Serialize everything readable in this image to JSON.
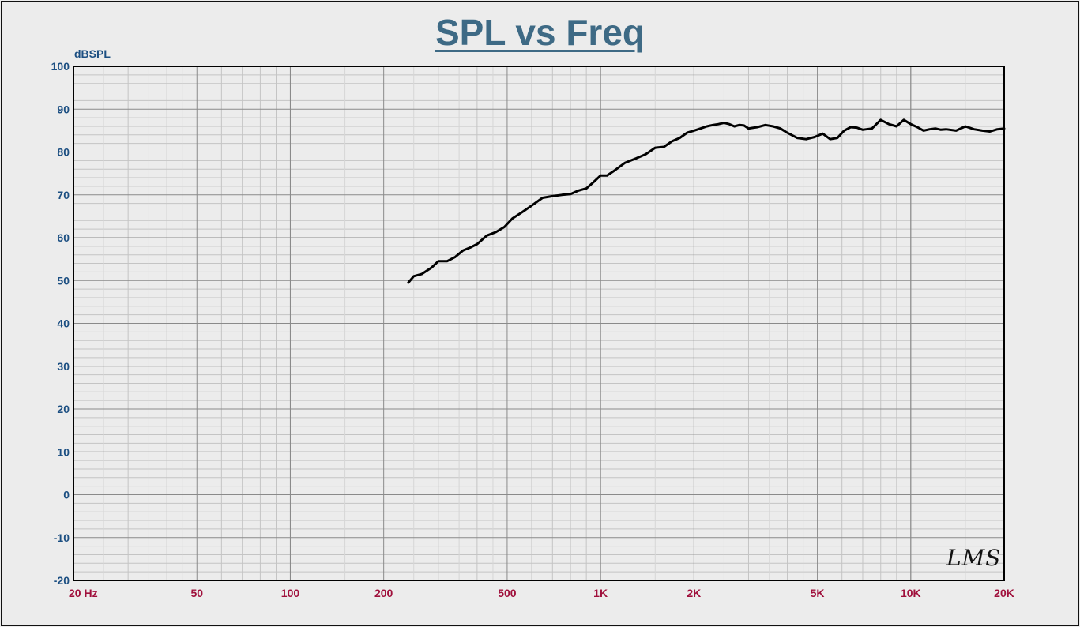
{
  "chart_data": {
    "type": "line",
    "title": "SPL vs Freq",
    "ylabel": "dBSPL",
    "xscale": "log",
    "xlim": [
      20,
      20000
    ],
    "ylim": [
      -20,
      100
    ],
    "grid": true,
    "yticks": [
      {
        "value": 100,
        "label": "100"
      },
      {
        "value": 90,
        "label": "90"
      },
      {
        "value": 80,
        "label": "80"
      },
      {
        "value": 70,
        "label": "70"
      },
      {
        "value": 60,
        "label": "60"
      },
      {
        "value": 50,
        "label": "50"
      },
      {
        "value": 40,
        "label": "40"
      },
      {
        "value": 30,
        "label": "30"
      },
      {
        "value": 20,
        "label": "20"
      },
      {
        "value": 10,
        "label": "10"
      },
      {
        "value": 0,
        "label": "0"
      },
      {
        "value": -10,
        "label": "-10"
      },
      {
        "value": -20,
        "label": "-20"
      }
    ],
    "xticks": [
      {
        "value": 20,
        "label": "20  Hz"
      },
      {
        "value": 50,
        "label": "50"
      },
      {
        "value": 100,
        "label": "100"
      },
      {
        "value": 200,
        "label": "200"
      },
      {
        "value": 500,
        "label": "500"
      },
      {
        "value": 1000,
        "label": "1K"
      },
      {
        "value": 2000,
        "label": "2K"
      },
      {
        "value": 5000,
        "label": "5K"
      },
      {
        "value": 10000,
        "label": "10K"
      },
      {
        "value": 20000,
        "label": "20K"
      }
    ],
    "series": [
      {
        "color": "#000000",
        "x": [
          240,
          250,
          265,
          285,
          300,
          320,
          340,
          360,
          380,
          400,
          430,
          460,
          490,
          520,
          560,
          600,
          650,
          700,
          750,
          800,
          850,
          900,
          950,
          1000,
          1050,
          1100,
          1200,
          1300,
          1400,
          1500,
          1600,
          1700,
          1800,
          1900,
          2000,
          2100,
          2200,
          2300,
          2400,
          2500,
          2600,
          2700,
          2800,
          2900,
          3000,
          3200,
          3400,
          3600,
          3800,
          4000,
          4300,
          4600,
          4900,
          5200,
          5500,
          5800,
          6100,
          6400,
          6700,
          7000,
          7500,
          8000,
          8500,
          9000,
          9500,
          10000,
          10500,
          11000,
          11500,
          12000,
          12500,
          13000,
          14000,
          15000,
          16000,
          17000,
          18000,
          19000,
          20000
        ],
        "y": [
          49.5,
          51,
          51.5,
          53,
          54.5,
          54.5,
          55.5,
          57,
          57.7,
          58.5,
          60.5,
          61.3,
          62.5,
          64.5,
          66,
          67.5,
          69.3,
          69.7,
          70,
          70.2,
          71,
          71.5,
          73,
          74.5,
          74.5,
          75.5,
          77.5,
          78.5,
          79.5,
          81,
          81.2,
          82.5,
          83.3,
          84.5,
          85,
          85.5,
          86,
          86.3,
          86.5,
          86.8,
          86.5,
          86,
          86.3,
          86.2,
          85.5,
          85.8,
          86.3,
          86,
          85.5,
          84.5,
          83.3,
          83,
          83.5,
          84.3,
          83,
          83.3,
          85,
          85.8,
          85.7,
          85.2,
          85.5,
          87.5,
          86.5,
          86,
          87.5,
          86.5,
          85.8,
          85,
          85.3,
          85.5,
          85.2,
          85.3,
          85,
          86,
          85.3,
          85,
          84.8,
          85.3,
          85.5
        ]
      }
    ]
  },
  "watermark": "LMS"
}
